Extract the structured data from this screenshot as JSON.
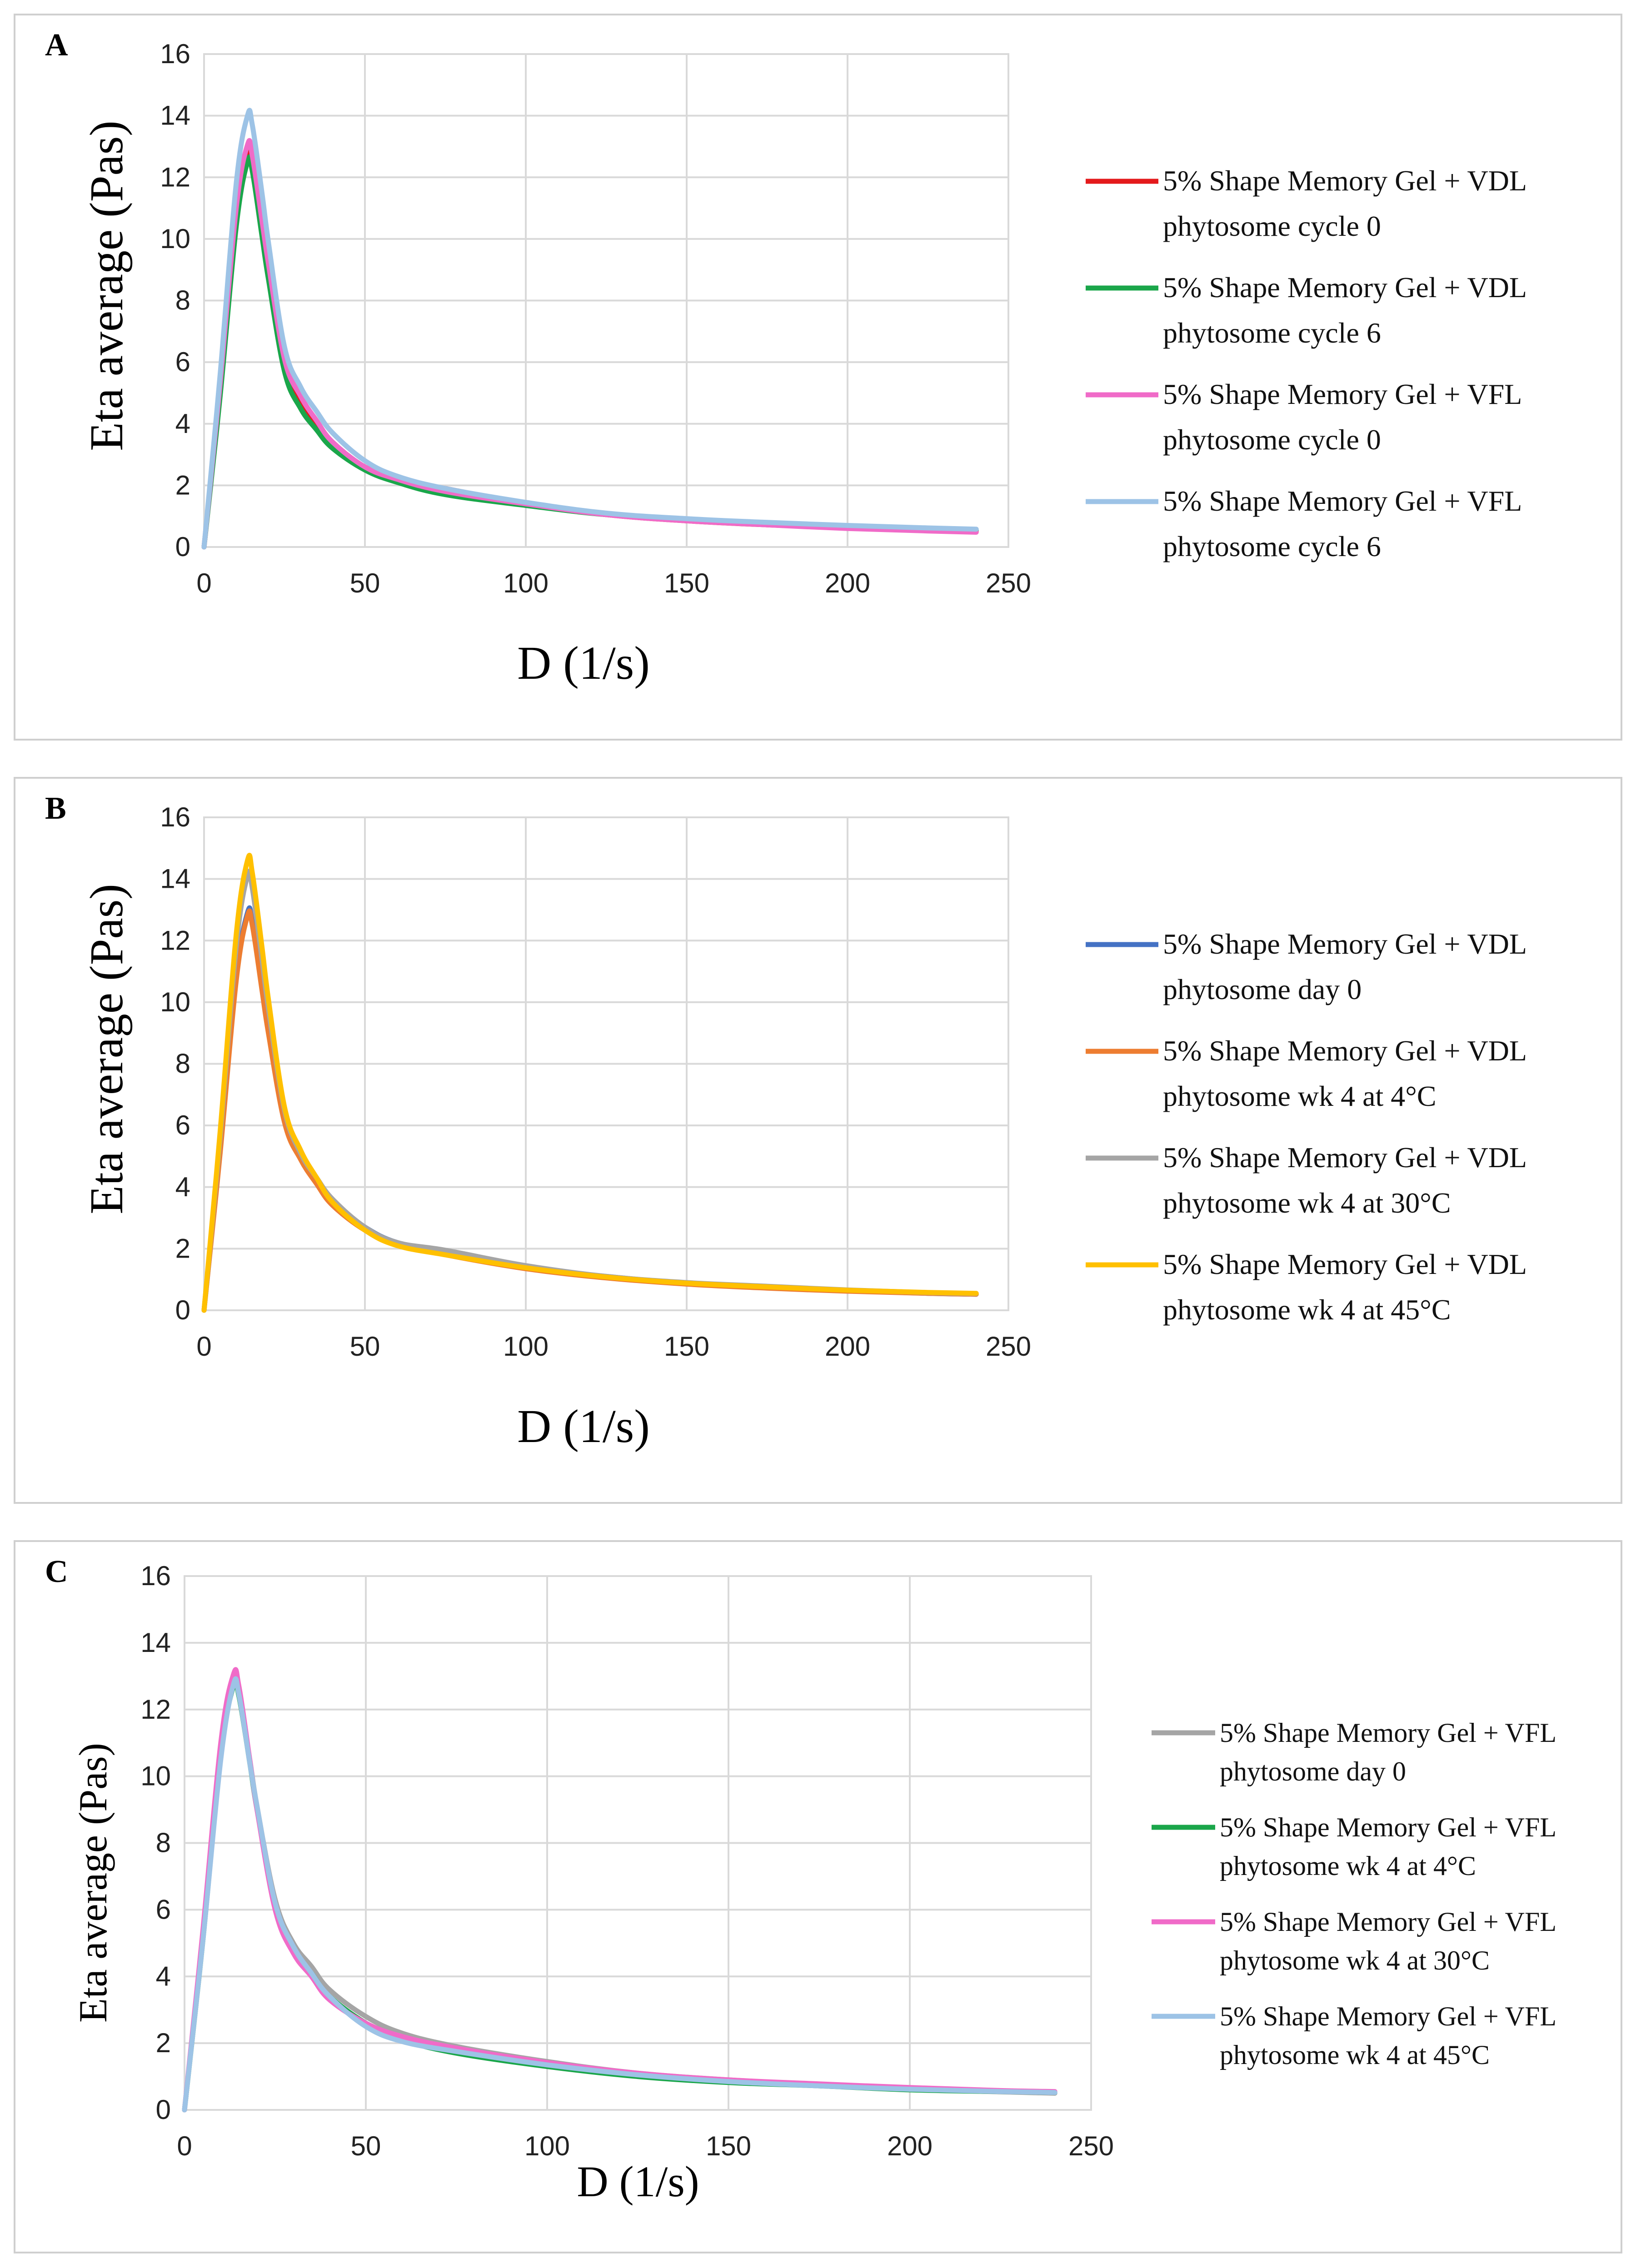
{
  "chart_data": [
    {
      "type": "line",
      "panel_label": "A",
      "title": "",
      "xlabel": "D (1/s)",
      "ylabel": "Eta average (Pas)",
      "xlim": [
        0,
        250
      ],
      "ylim": [
        0,
        16
      ],
      "xticks": [
        0,
        50,
        100,
        150,
        200,
        250
      ],
      "yticks": [
        0,
        2,
        4,
        6,
        8,
        10,
        12,
        14,
        16
      ],
      "grid": true,
      "legend_position": "right",
      "x": [
        0,
        5,
        10,
        13.5,
        15,
        18,
        20,
        25,
        30,
        35,
        40,
        50,
        60,
        75,
        100,
        125,
        150,
        175,
        200,
        225,
        240
      ],
      "series": [
        {
          "name_line1": "5% Shape Memory Gel + VDL",
          "name_line2": "phytosome cycle 0",
          "color": "#e41a1c",
          "values": [
            0,
            5.2,
            10.9,
            12.85,
            12.5,
            10.4,
            9.0,
            6.0,
            4.8,
            4.0,
            3.3,
            2.6,
            2.2,
            1.9,
            1.4,
            1.05,
            0.85,
            0.72,
            0.62,
            0.53,
            0.5
          ]
        },
        {
          "name_line1": "5% Shape Memory Gel + VDL",
          "name_line2": "phytosome cycle 6",
          "color": "#1aa64a",
          "values": [
            0,
            4.9,
            10.4,
            12.5,
            12.2,
            10.1,
            8.7,
            5.7,
            4.5,
            3.8,
            3.2,
            2.5,
            2.1,
            1.7,
            1.35,
            1.05,
            0.9,
            0.78,
            0.68,
            0.6,
            0.55
          ]
        },
        {
          "name_line1": "5% Shape Memory Gel + VFL",
          "name_line2": "phytosome cycle 0",
          "color": "#f06bc8",
          "values": [
            0,
            5.3,
            11.0,
            13.05,
            12.7,
            10.6,
            9.2,
            6.1,
            4.9,
            4.1,
            3.4,
            2.6,
            2.2,
            1.8,
            1.4,
            1.05,
            0.85,
            0.72,
            0.6,
            0.52,
            0.48
          ]
        },
        {
          "name_line1": "5% Shape Memory Gel + VFL",
          "name_line2": "phytosome cycle 6",
          "color": "#9dc3e6",
          "values": [
            0,
            5.6,
            11.8,
            14.0,
            13.7,
            11.5,
            9.9,
            6.5,
            5.2,
            4.4,
            3.7,
            2.8,
            2.3,
            1.9,
            1.45,
            1.1,
            0.92,
            0.8,
            0.7,
            0.62,
            0.58
          ]
        }
      ]
    },
    {
      "type": "line",
      "panel_label": "B",
      "title": "",
      "xlabel": "D (1/s)",
      "ylabel": "Eta average (Pas)",
      "xlim": [
        0,
        250
      ],
      "ylim": [
        0,
        16
      ],
      "xticks": [
        0,
        50,
        100,
        150,
        200,
        250
      ],
      "yticks": [
        0,
        2,
        4,
        6,
        8,
        10,
        12,
        14,
        16
      ],
      "grid": true,
      "legend_position": "right",
      "x": [
        0,
        5,
        10,
        13.5,
        15,
        18,
        20,
        25,
        30,
        35,
        40,
        50,
        60,
        75,
        100,
        125,
        150,
        175,
        200,
        225,
        240
      ],
      "series": [
        {
          "name_line1": "5% Shape Memory Gel + VDL",
          "name_line2": "phytosome day 0",
          "color": "#4472c4",
          "values": [
            0,
            5.2,
            10.8,
            12.9,
            12.6,
            10.5,
            9.1,
            6.2,
            5.0,
            4.2,
            3.5,
            2.7,
            2.2,
            1.9,
            1.4,
            1.1,
            0.88,
            0.75,
            0.63,
            0.55,
            0.52
          ]
        },
        {
          "name_line1": "5% Shape Memory Gel + VDL",
          "name_line2": "phytosome wk 4 at 4°C",
          "color": "#ed7d31",
          "values": [
            0,
            5.1,
            10.7,
            12.8,
            12.5,
            10.4,
            9.0,
            6.1,
            4.9,
            4.1,
            3.4,
            2.6,
            2.15,
            1.8,
            1.35,
            1.05,
            0.85,
            0.72,
            0.62,
            0.55,
            0.52
          ]
        },
        {
          "name_line1": "5% Shape Memory Gel + VDL",
          "name_line2": "phytosome wk 4 at 30°C",
          "color": "#a5a5a5",
          "values": [
            0,
            5.6,
            11.8,
            14.1,
            13.7,
            11.4,
            9.8,
            6.5,
            5.1,
            4.3,
            3.6,
            2.7,
            2.2,
            1.95,
            1.45,
            1.1,
            0.9,
            0.78,
            0.66,
            0.57,
            0.54
          ]
        },
        {
          "name_line1": "5% Shape Memory Gel + VDL",
          "name_line2": "phytosome wk 4 at 45°C",
          "color": "#ffc000",
          "values": [
            0,
            5.8,
            12.2,
            14.6,
            14.2,
            11.8,
            10.1,
            6.6,
            5.2,
            4.3,
            3.5,
            2.6,
            2.1,
            1.8,
            1.38,
            1.08,
            0.88,
            0.76,
            0.65,
            0.58,
            0.55
          ]
        }
      ]
    },
    {
      "type": "line",
      "panel_label": "C",
      "title": "",
      "xlabel": "D (1/s)",
      "ylabel": "Eta average (Pas)",
      "xlim": [
        0,
        250
      ],
      "ylim": [
        0,
        16
      ],
      "xticks": [
        0,
        50,
        100,
        150,
        200,
        250
      ],
      "yticks": [
        0,
        2,
        4,
        6,
        8,
        10,
        12,
        14,
        16
      ],
      "grid": true,
      "legend_position": "right",
      "x": [
        0,
        5,
        10,
        13.5,
        15,
        18,
        20,
        25,
        30,
        35,
        40,
        50,
        60,
        75,
        100,
        125,
        150,
        175,
        200,
        225,
        240
      ],
      "series": [
        {
          "name_line1": "5% Shape Memory Gel + VFL",
          "name_line2": "phytosome day 0",
          "color": "#a5a5a5",
          "values": [
            0,
            5.1,
            10.7,
            12.8,
            12.5,
            10.5,
            9.1,
            6.3,
            5.0,
            4.3,
            3.6,
            2.8,
            2.3,
            1.9,
            1.45,
            1.1,
            0.9,
            0.75,
            0.62,
            0.54,
            0.5
          ]
        },
        {
          "name_line1": "5% Shape Memory Gel + VFL",
          "name_line2": "phytosome wk 4 at 4°C",
          "color": "#1aa64a",
          "values": [
            0,
            5.0,
            10.6,
            12.7,
            12.4,
            10.4,
            9.0,
            6.1,
            4.8,
            4.1,
            3.4,
            2.6,
            2.1,
            1.7,
            1.3,
            1.0,
            0.82,
            0.72,
            0.6,
            0.55,
            0.52
          ]
        },
        {
          "name_line1": "5% Shape Memory Gel + VFL",
          "name_line2": "phytosome wk 4 at 30°C",
          "color": "#f06bc8",
          "values": [
            0,
            5.3,
            11.0,
            13.05,
            12.7,
            10.5,
            9.0,
            6.0,
            4.7,
            4.0,
            3.3,
            2.6,
            2.2,
            1.85,
            1.42,
            1.1,
            0.9,
            0.78,
            0.67,
            0.58,
            0.55
          ]
        },
        {
          "name_line1": "5% Shape Memory Gel + VFL",
          "name_line2": "phytosome wk 4 at 45°C",
          "color": "#9dc3e6",
          "values": [
            0,
            5.0,
            10.5,
            12.75,
            12.45,
            10.4,
            9.1,
            6.2,
            4.9,
            4.1,
            3.4,
            2.5,
            2.05,
            1.75,
            1.35,
            1.05,
            0.85,
            0.72,
            0.62,
            0.55,
            0.52
          ]
        }
      ]
    }
  ]
}
